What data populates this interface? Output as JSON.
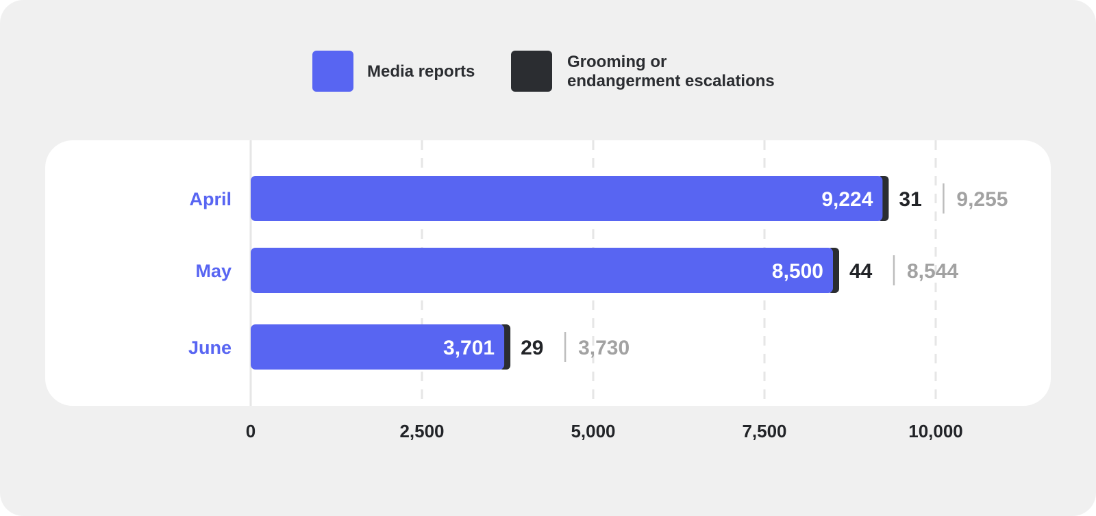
{
  "colors": {
    "media": "#5865f2",
    "escalation": "#2b2d31",
    "category": "#5865f2",
    "total": "#a2a2a2",
    "grid": "#e6e6e6"
  },
  "legend": {
    "media_label": "Media reports",
    "escalation_line1": "Grooming or",
    "escalation_line2": "endangerment escalations"
  },
  "chart_data": {
    "type": "bar",
    "orientation": "horizontal",
    "stacked": true,
    "categories": [
      "April",
      "May",
      "June"
    ],
    "series": [
      {
        "name": "Media reports",
        "values": [
          9224,
          8500,
          3701
        ],
        "labels": [
          "9,224",
          "8,500",
          "3,701"
        ]
      },
      {
        "name": "Grooming or endangerment escalations",
        "values": [
          31,
          44,
          29
        ],
        "labels": [
          "31",
          "44",
          "29"
        ]
      }
    ],
    "totals": {
      "values": [
        9255,
        8544,
        3730
      ],
      "labels": [
        "9,255",
        "8,544",
        "3,730"
      ]
    },
    "xlim": [
      0,
      10000
    ],
    "xticks": [
      0,
      2500,
      5000,
      7500,
      10000
    ],
    "xtick_labels": [
      "0",
      "2,500",
      "5,000",
      "7,500",
      "10,000"
    ],
    "grid": true,
    "legend_position": "top"
  }
}
